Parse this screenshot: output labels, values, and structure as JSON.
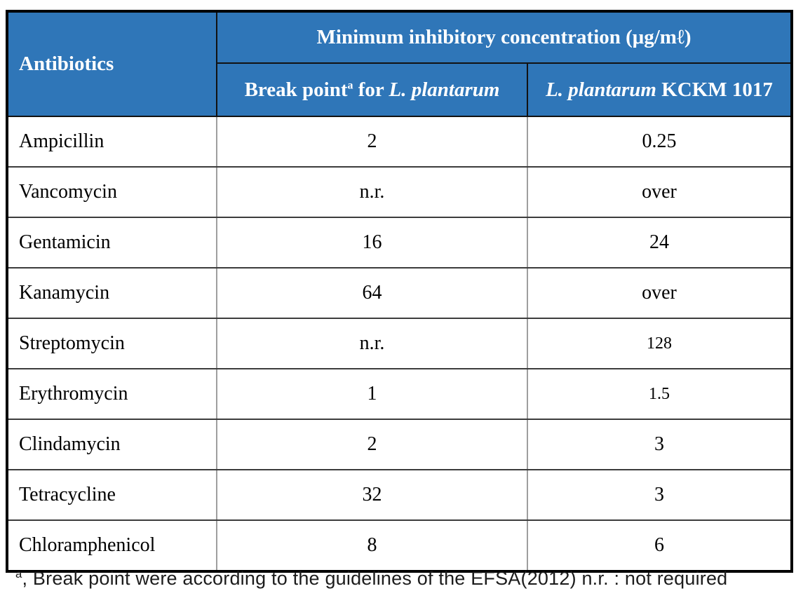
{
  "table": {
    "header": {
      "antibiotics": "Antibiotics",
      "mic_title": "Minimum inhibitory concentration (μg/mℓ)",
      "col_breakpoint": {
        "prefix": "Break point",
        "sup": "a",
        "mid": " for ",
        "species": "L. plantarum"
      },
      "col_strain": {
        "species": "L. plantarum",
        "rest": " KCKM 1017"
      }
    },
    "rows": [
      {
        "antibiotic": "Ampicillin",
        "break_point": "2",
        "strain_mic": "0.25",
        "small_value": false
      },
      {
        "antibiotic": "Vancomycin",
        "break_point": "n.r.",
        "strain_mic": "over",
        "small_value": false
      },
      {
        "antibiotic": "Gentamicin",
        "break_point": "16",
        "strain_mic": "24",
        "small_value": false
      },
      {
        "antibiotic": "Kanamycin",
        "break_point": "64",
        "strain_mic": "over",
        "small_value": false
      },
      {
        "antibiotic": "Streptomycin",
        "break_point": "n.r.",
        "strain_mic": "128",
        "small_value": true
      },
      {
        "antibiotic": "Erythromycin",
        "break_point": "1",
        "strain_mic": "1.5",
        "small_value": true
      },
      {
        "antibiotic": "Clindamycin",
        "break_point": "2",
        "strain_mic": "3",
        "small_value": false
      },
      {
        "antibiotic": "Tetracycline",
        "break_point": "32",
        "strain_mic": "3",
        "small_value": false
      },
      {
        "antibiotic": "Chloramphenicol",
        "break_point": "8",
        "strain_mic": "6",
        "small_value": false
      }
    ]
  },
  "footnote": {
    "sup": "a",
    "text": ", Break point were according to the guidelines of the EFSA(2012) n.r. : not required"
  },
  "colors": {
    "header_bg": "#2F76B8",
    "header_text": "#FFFFFF",
    "outer_border": "#000000",
    "row_line": "#3C3C3C",
    "col_line": "#9E9E9E"
  },
  "chart_data": {
    "type": "table",
    "title": "Minimum inhibitory concentration (μg/mℓ)",
    "columns": [
      "Antibiotics",
      "Break point for L. plantarum",
      "L. plantarum KCKM 1017"
    ],
    "rows": [
      [
        "Ampicillin",
        "2",
        "0.25"
      ],
      [
        "Vancomycin",
        "n.r.",
        "over"
      ],
      [
        "Gentamicin",
        "16",
        "24"
      ],
      [
        "Kanamycin",
        "64",
        "over"
      ],
      [
        "Streptomycin",
        "n.r.",
        "128"
      ],
      [
        "Erythromycin",
        "1",
        "1.5"
      ],
      [
        "Clindamycin",
        "2",
        "3"
      ],
      [
        "Tetracycline",
        "32",
        "3"
      ],
      [
        "Chloramphenicol",
        "8",
        "6"
      ]
    ]
  }
}
